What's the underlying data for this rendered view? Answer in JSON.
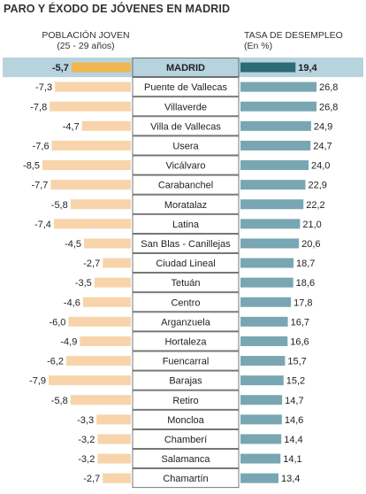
{
  "title": "PARO Y ÉXODO DE JÓVENES EN MADRID",
  "left_header": {
    "line1": "POBLACIÓN JOVEN",
    "line2": "(25 - 29 años)"
  },
  "right_header": {
    "line1": "TASA DE DESEMPLEO",
    "line2": "(En %)"
  },
  "colors": {
    "left_bar": "#f8d4aa",
    "left_bar_highlight": "#f0b650",
    "right_bar": "#79a6b3",
    "right_bar_highlight": "#2d6b78",
    "highlight_band": "#b7d3de",
    "label_box_border": "#555555"
  },
  "chart_data": {
    "type": "bar",
    "categories": [
      "MADRID",
      "Puente de Vallecas",
      "Villaverde",
      "Villa de Vallecas",
      "Usera",
      "Vicálvaro",
      "Carabanchel",
      "Moratalaz",
      "Latina",
      "San Blas - Canillejas",
      "Ciudad Lineal",
      "Tetuán",
      "Centro",
      "Arganzuela",
      "Hortaleza",
      "Fuencarral",
      "Barajas",
      "Retiro",
      "Moncloa",
      "Chamberí",
      "Salamanca",
      "Chamartín"
    ],
    "highlighted_category": "MADRID",
    "series": [
      {
        "name": "POBLACIÓN JOVEN (25 - 29 años)",
        "values": [
          -5.7,
          -7.3,
          -7.8,
          -4.7,
          -7.6,
          -8.5,
          -7.7,
          -5.8,
          -7.4,
          -4.5,
          -2.7,
          -3.5,
          -4.6,
          -6.0,
          -4.9,
          -6.2,
          -7.9,
          -5.8,
          -3.3,
          -3.2,
          -3.2,
          -2.7
        ],
        "labels": [
          "-5,7",
          "-7,3",
          "-7,8",
          "-4,7",
          "-7,6",
          "-8,5",
          "-7,7",
          "-5,8",
          "-7,4",
          "-4,5",
          "-2,7",
          "-3,5",
          "-4,6",
          "-6,0",
          "-4,9",
          "-6,2",
          "-7,9",
          "-5,8",
          "-3,3",
          "-3,2",
          "-3,2",
          "-2,7"
        ]
      },
      {
        "name": "TASA DE DESEMPLEO (En %)",
        "values": [
          19.4,
          26.8,
          26.8,
          24.9,
          24.7,
          24.0,
          22.9,
          22.2,
          21.0,
          20.6,
          18.7,
          18.6,
          17.8,
          16.7,
          16.6,
          15.7,
          15.2,
          14.7,
          14.6,
          14.4,
          14.1,
          13.4
        ],
        "labels": [
          "19,4",
          "26,8",
          "26,8",
          "24,9",
          "24,7",
          "24,0",
          "22,9",
          "22,2",
          "21,0",
          "20,6",
          "18,7",
          "18,6",
          "17,8",
          "16,7",
          "16,6",
          "15,7",
          "15,2",
          "14,7",
          "14,6",
          "14,4",
          "14,1",
          "13,4"
        ]
      }
    ]
  }
}
